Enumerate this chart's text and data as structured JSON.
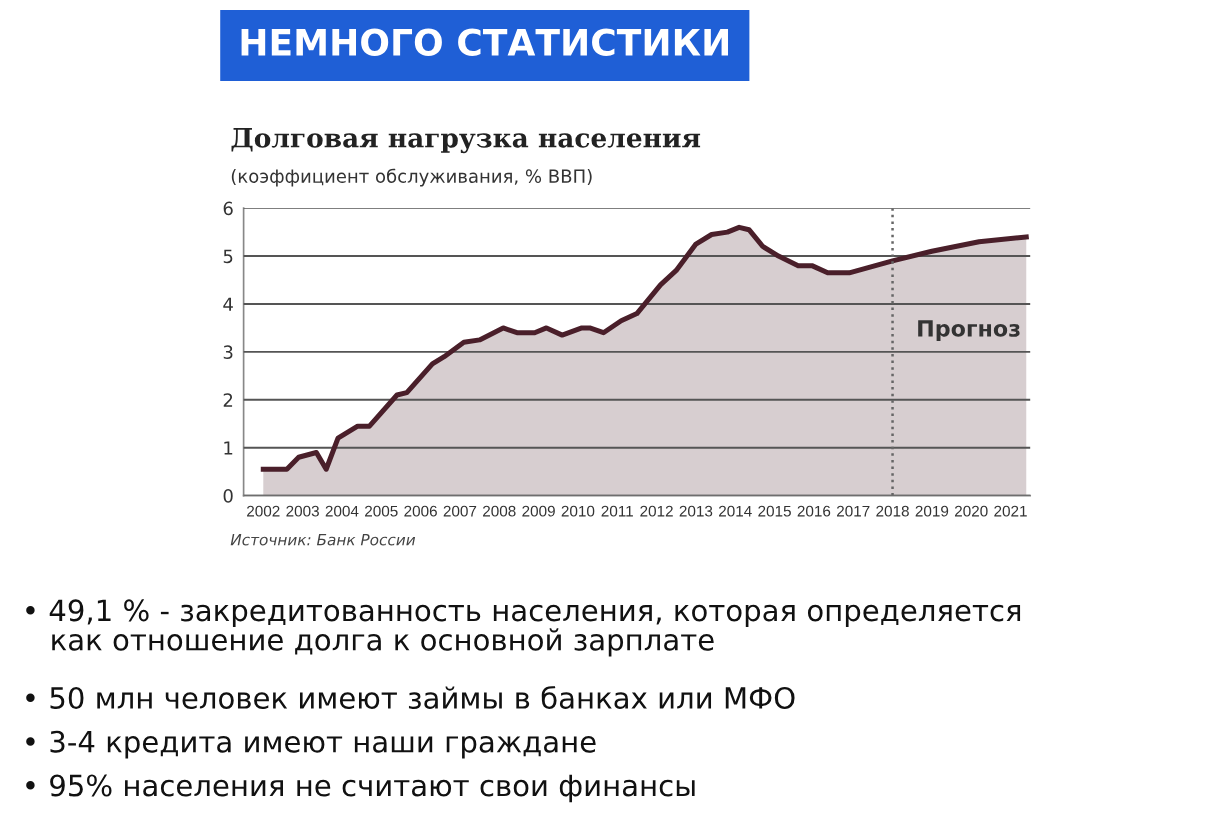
{
  "chart_data": {
    "type": "area",
    "title": "НЕМНОГО СТАТИСТИКИ",
    "subtitle": "Долговая нагрузка населения",
    "ylabel": "(коэффициент обслуживания, % ВВП)",
    "x": [
      2002.5,
      2003.1,
      2003.4,
      2003.85,
      2004.1,
      2004.4,
      2004.9,
      2005.2,
      2005.9,
      2006.15,
      2006.8,
      2007.1,
      2007.6,
      2008.0,
      2008.6,
      2008.95,
      2009.4,
      2009.7,
      2010.1,
      2010.6,
      2010.8,
      2011.15,
      2011.6,
      2012.0,
      2012.6,
      2013.0,
      2013.5,
      2013.9,
      2014.3,
      2014.6,
      2014.85,
      2015.2,
      2015.6,
      2016.1,
      2016.45,
      2016.85,
      2017.4,
      2018.5,
      2019.5,
      2020.7,
      2021.9
    ],
    "series": [
      {
        "color": "#4a1f2a",
        "values": [
          0.55,
          0.55,
          0.8,
          0.9,
          0.55,
          1.2,
          1.45,
          1.45,
          2.1,
          2.15,
          2.75,
          2.9,
          3.2,
          3.25,
          3.5,
          3.4,
          3.4,
          3.5,
          3.35,
          3.5,
          3.5,
          3.4,
          3.65,
          3.8,
          4.4,
          4.7,
          5.25,
          5.45,
          5.5,
          5.6,
          5.55,
          5.2,
          5.0,
          4.8,
          4.8,
          4.65,
          4.65,
          4.9,
          5.1,
          5.3,
          5.4
        ]
      }
    ],
    "xlim": [
      2002,
      2022
    ],
    "xticks": [
      {
        "value": 2002.5,
        "label": "2002"
      },
      {
        "value": 2003.5,
        "label": "2003"
      },
      {
        "value": 2004.5,
        "label": "2004"
      },
      {
        "value": 2005.5,
        "label": "2005"
      },
      {
        "value": 2006.5,
        "label": "2006"
      },
      {
        "value": 2007.5,
        "label": "2007"
      },
      {
        "value": 2008.5,
        "label": "2008"
      },
      {
        "value": 2009.5,
        "label": "2009"
      },
      {
        "value": 2010.5,
        "label": "2010"
      },
      {
        "value": 2011.5,
        "label": "2011"
      },
      {
        "value": 2012.5,
        "label": "2012"
      },
      {
        "value": 2013.5,
        "label": "2013"
      },
      {
        "value": 2014.5,
        "label": "2014"
      },
      {
        "value": 2015.5,
        "label": "2015"
      },
      {
        "value": 2016.5,
        "label": "2016"
      },
      {
        "value": 2017.5,
        "label": "2017"
      },
      {
        "value": 2018.5,
        "label": "2018"
      },
      {
        "value": 2019.5,
        "label": "2019"
      },
      {
        "value": 2020.5,
        "label": "2020"
      },
      {
        "value": 2021.5,
        "label": "2021"
      }
    ],
    "ylim": [
      0,
      6
    ],
    "yticks": [
      0,
      1,
      2,
      3,
      4,
      5,
      6
    ],
    "grid": "y",
    "ref_lines": [
      {
        "axis": "x",
        "value": 2018.5,
        "label": "Прогноз",
        "color": "#666666",
        "line_style": "dotted"
      }
    ],
    "annotations": [
      "Источник: Банк России",
      "• 49,1 % - закредитованность населения, которая определяется\n   как отношение долга к основной зарплате",
      "• 50 млн человек имеют займы в банках или МФО",
      "• 3-4 кредита имеют наши граждане",
      "• 95% населения не считают свои финансы"
    ]
  }
}
